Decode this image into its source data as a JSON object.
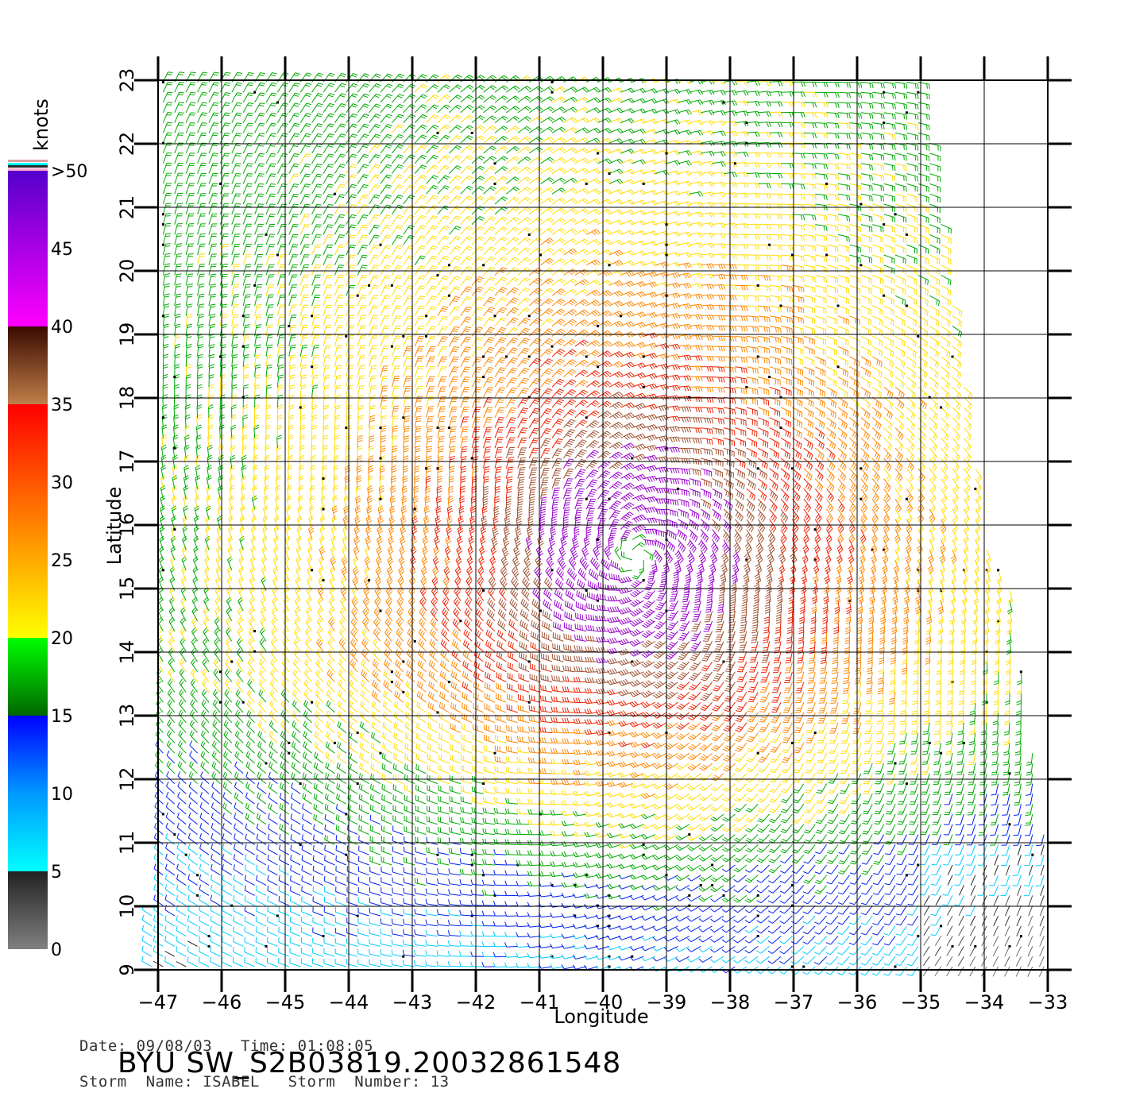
{
  "chart_data": {
    "type": "wind-barb-map",
    "xlabel": "Longitude",
    "ylabel": "Latitude",
    "xlim": [
      -47,
      -33
    ],
    "ylim": [
      9,
      23
    ],
    "x_ticks": [
      -47,
      -46,
      -45,
      -44,
      -43,
      -42,
      -41,
      -40,
      -39,
      -38,
      -37,
      -36,
      -35,
      -34,
      -33
    ],
    "y_ticks": [
      9,
      10,
      11,
      12,
      13,
      14,
      15,
      16,
      17,
      18,
      19,
      20,
      21,
      22,
      23
    ],
    "grid": true,
    "storm_center": {
      "lon": -39.5,
      "lat": 15.5
    },
    "colorbar": {
      "unit": "knots",
      "labels": [
        "0",
        "5",
        "10",
        "15",
        "20",
        "25",
        "30",
        "35",
        "40",
        "45",
        ">50"
      ],
      "stops": [
        {
          "value": 0,
          "color": "#808080"
        },
        {
          "value": 5,
          "color": "#222222"
        },
        {
          "value": 5,
          "color": "#00ffff"
        },
        {
          "value": 10,
          "color": "#0099ff"
        },
        {
          "value": 15,
          "color": "#0000ff"
        },
        {
          "value": 15,
          "color": "#006600"
        },
        {
          "value": 20,
          "color": "#00ff00"
        },
        {
          "value": 20,
          "color": "#ffff00"
        },
        {
          "value": 25,
          "color": "#ffaa00"
        },
        {
          "value": 30,
          "color": "#ff5500"
        },
        {
          "value": 35,
          "color": "#ff0000"
        },
        {
          "value": 35,
          "color": "#c07f4a"
        },
        {
          "value": 40,
          "color": "#3a0a00"
        },
        {
          "value": 40,
          "color": "#ff00ff"
        },
        {
          "value": 50,
          "color": "#5500cc"
        }
      ]
    }
  },
  "meta": {
    "date_line": "Date: 09/08/03   Time: 01:08:05",
    "storm_line": "Storm  Name: ISABEL   Storm  Number: 13",
    "product_title": "BYU  SW_S2B03819.20032861548"
  }
}
